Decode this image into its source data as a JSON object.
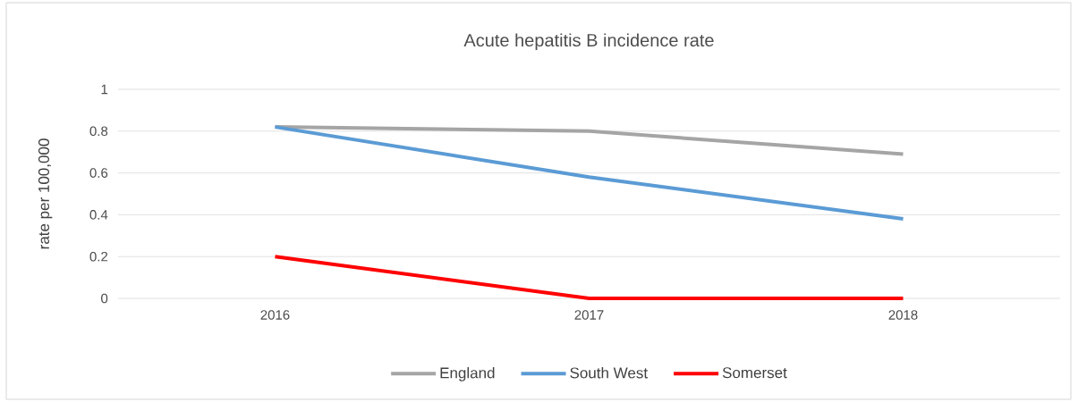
{
  "chart_data": {
    "type": "line",
    "title": "Acute hepatitis B incidence rate",
    "ylabel": "rate per 100,000",
    "categories": [
      "2016",
      "2017",
      "2018"
    ],
    "series": [
      {
        "name": "England",
        "color": "#a5a5a5",
        "values": [
          0.82,
          0.8,
          0.69
        ]
      },
      {
        "name": "South West",
        "color": "#5b9bd5",
        "values": [
          0.82,
          0.58,
          0.38
        ]
      },
      {
        "name": "Somerset",
        "color": "#ff0000",
        "values": [
          0.2,
          0,
          0
        ]
      }
    ],
    "ylim": [
      0,
      1
    ],
    "yticks": [
      0,
      0.2,
      0.4,
      0.6,
      0.8,
      1
    ],
    "grid": "y",
    "legend": "bottom",
    "marker": "none",
    "line_style": "solid"
  }
}
